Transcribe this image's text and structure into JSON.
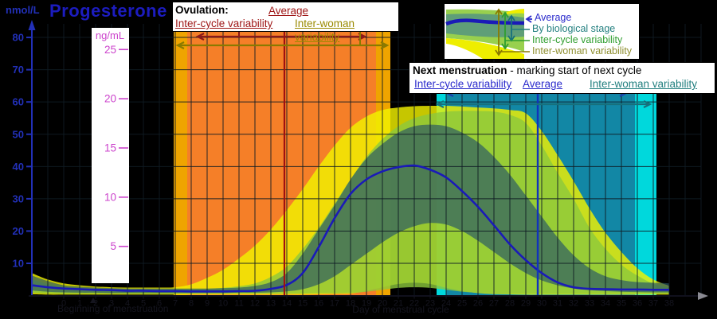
{
  "title": "Progesterone",
  "y_axis": {
    "unit": "nmol/L",
    "ticks": [
      80,
      70,
      60,
      50,
      40,
      30,
      20,
      10
    ]
  },
  "ng_axis": {
    "unit": "ng/mL",
    "ticks": [
      25,
      20,
      15,
      10,
      5
    ]
  },
  "x_axis": {
    "label": "Day of menstrual cycle",
    "start_label": "Beginning of menstruation",
    "ticks": [
      0,
      1,
      2,
      3,
      4,
      5,
      6,
      7,
      8,
      9,
      10,
      11,
      12,
      13,
      14,
      15,
      16,
      17,
      18,
      19,
      20,
      21,
      22,
      23,
      24,
      25,
      26,
      27,
      28,
      29,
      30,
      31,
      32,
      33,
      34,
      35,
      36,
      37,
      38
    ]
  },
  "ovulation_box": {
    "title": "Ovulation:",
    "average_label": "Average",
    "inter_cycle_label": "Inter-cycle variability",
    "inter_woman_label": "Inter-woman variability"
  },
  "menstruation_box": {
    "title": "Next menstruation",
    "subtitle": " - marking start of next cycle",
    "inter_cycle_label": "Inter-cycle variability",
    "average_label": "Average",
    "inter_woman_label": "Inter-woman variability"
  },
  "legend": {
    "average": "Average",
    "stage": "By biological stage",
    "inter_cycle": "Inter-cycle variability",
    "inter_woman": "Inter-woman variability"
  },
  "colors": {
    "background": "#000000",
    "title_blue": "#1c1cbe",
    "axis_blue": "#2230b8",
    "magenta": "#cc44cc",
    "amber_band": "#efa400",
    "orange_band": "#f57f28",
    "cyan_band": "#00d8dc",
    "teal_band": "#1287a5",
    "yellow_band": "rgba(242,242,0,0.82)",
    "green_band": "rgba(140,200,60,0.80)",
    "stage_band": "rgba(42,88,100,0.68)",
    "avg_curve": "#1a1ab8",
    "ovulation_line": "#a01010",
    "menstruation_line": "#1133bb",
    "arrow_red": "#8b1a1a",
    "arrow_olive": "#8a7a00",
    "arrow_blue": "#1a3fae",
    "arrow_teal": "#17707c",
    "grid": "rgba(16,28,36,0.9)",
    "hidden_text": "#15151f",
    "x_arrow": "#8a8a92"
  },
  "chart_data": {
    "type": "area",
    "title": "Progesterone",
    "xlabel": "Day of menstrual cycle",
    "ylabel": "nmol/L",
    "ylim": [
      0,
      80
    ],
    "xlim": [
      -2,
      40
    ],
    "grid": true,
    "days": [
      -2,
      -1,
      0,
      1,
      2,
      3,
      4,
      5,
      6,
      7,
      8,
      9,
      10,
      11,
      12,
      13,
      14,
      15,
      16,
      17,
      18,
      19,
      20,
      21,
      22,
      23,
      24,
      25,
      26,
      27,
      28,
      29,
      30,
      31,
      32,
      33,
      34,
      35,
      36,
      37,
      38
    ],
    "average": [
      3.2,
      2.6,
      2.2,
      2.0,
      1.8,
      1.7,
      1.5,
      1.5,
      1.4,
      1.4,
      1.3,
      1.3,
      1.3,
      1.4,
      1.5,
      2.1,
      3.3,
      7.0,
      15.0,
      24.0,
      31.5,
      36.0,
      38.5,
      39.8,
      40.3,
      39.0,
      36.6,
      32.4,
      27.5,
      21.8,
      15.9,
      11.0,
      7.0,
      4.1,
      2.6,
      2.1,
      2.0,
      1.9,
      1.9,
      1.8,
      1.8
    ],
    "stage_band": {
      "hi": [
        6.2,
        4.5,
        3.2,
        2.8,
        2.5,
        2.3,
        2.2,
        2.2,
        2.2,
        2.2,
        2.2,
        2.2,
        2.3,
        2.5,
        3.0,
        4.2,
        7.0,
        13.0,
        20.5,
        28.0,
        36.0,
        42.5,
        47.0,
        50.5,
        52.5,
        53.0,
        52.5,
        50.5,
        47.5,
        43.0,
        37.5,
        31.0,
        24.5,
        18.0,
        12.5,
        8.5,
        6.0,
        4.8,
        4.2,
        4.0,
        3.8
      ],
      "lo": [
        1.6,
        1.2,
        1.0,
        0.9,
        0.9,
        0.8,
        0.8,
        0.8,
        0.8,
        0.8,
        0.8,
        0.8,
        0.8,
        0.9,
        0.9,
        1.0,
        1.3,
        2.0,
        3.5,
        6.0,
        9.5,
        13.0,
        16.5,
        19.5,
        21.5,
        22.5,
        22.0,
        20.0,
        17.0,
        13.5,
        10.0,
        7.0,
        4.7,
        3.2,
        2.2,
        1.7,
        1.4,
        1.2,
        1.1,
        1.0,
        1.0
      ]
    },
    "inter_cycle_band": {
      "hi": [
        5.0,
        3.6,
        2.8,
        2.4,
        2.1,
        2.0,
        1.9,
        1.9,
        1.9,
        1.9,
        2.0,
        2.1,
        2.4,
        2.9,
        3.8,
        5.8,
        9.0,
        14.5,
        21.0,
        28.5,
        36.0,
        43.0,
        48.5,
        52.5,
        55.0,
        56.3,
        57.0,
        57.2,
        57.2,
        57.0,
        56.0,
        53.5,
        46.5,
        38.0,
        30.0,
        21.0,
        14.5,
        9.6,
        6.2,
        3.7,
        2.5
      ],
      "lo": [
        0.9,
        0.7,
        0.6,
        0.6,
        0.6,
        0.6,
        0.6,
        0.6,
        0.6,
        0.6,
        0.6,
        0.6,
        0.6,
        0.6,
        0.6,
        0.6,
        0.6,
        0.6,
        0.7,
        0.7,
        0.8,
        1.2,
        1.8,
        2.4,
        2.6,
        2.4,
        1.8,
        1.2,
        0.9,
        0.7,
        0.6,
        0.6,
        0.6,
        0.6,
        0.6,
        0.6,
        0.6,
        0.6,
        0.6,
        0.6,
        0.6
      ]
    },
    "inter_woman_band": {
      "hi": [
        7.0,
        5.0,
        3.8,
        3.2,
        2.8,
        2.6,
        2.5,
        2.5,
        2.5,
        2.6,
        3.5,
        5.5,
        8.0,
        11.5,
        15.5,
        20.5,
        26.5,
        33.0,
        40.0,
        46.5,
        52.0,
        55.5,
        57.5,
        58.3,
        58.7,
        58.8,
        58.8,
        58.6,
        58.3,
        58.0,
        57.5,
        56.5,
        51.0,
        43.5,
        35.5,
        27.0,
        19.5,
        13.5,
        8.5,
        5.0,
        3.0
      ],
      "lo": [
        0.4,
        0.3,
        0.3,
        0.3,
        0.3,
        0.3,
        0.3,
        0.3,
        0.3,
        0.3,
        0.3,
        0.3,
        0.3,
        0.3,
        0.3,
        0.3,
        0.3,
        0.3,
        0.4,
        0.5,
        0.6,
        1.5,
        2.6,
        3.6,
        4.0,
        3.6,
        2.4,
        1.4,
        0.8,
        0.5,
        0.4,
        0.3,
        0.3,
        0.3,
        0.3,
        0.3,
        0.3,
        0.3,
        0.3,
        0.3,
        0.3
      ]
    },
    "ovulation": {
      "average_day": 13.85,
      "inter_cycle_days": [
        7.75,
        19.6
      ],
      "inter_woman_days": [
        6.9,
        20.5
      ]
    },
    "next_menstruation": {
      "average_day": 29.75,
      "inter_cycle_days": [
        24.0,
        35.85
      ],
      "inter_woman_days": [
        23.4,
        37.2
      ]
    }
  }
}
